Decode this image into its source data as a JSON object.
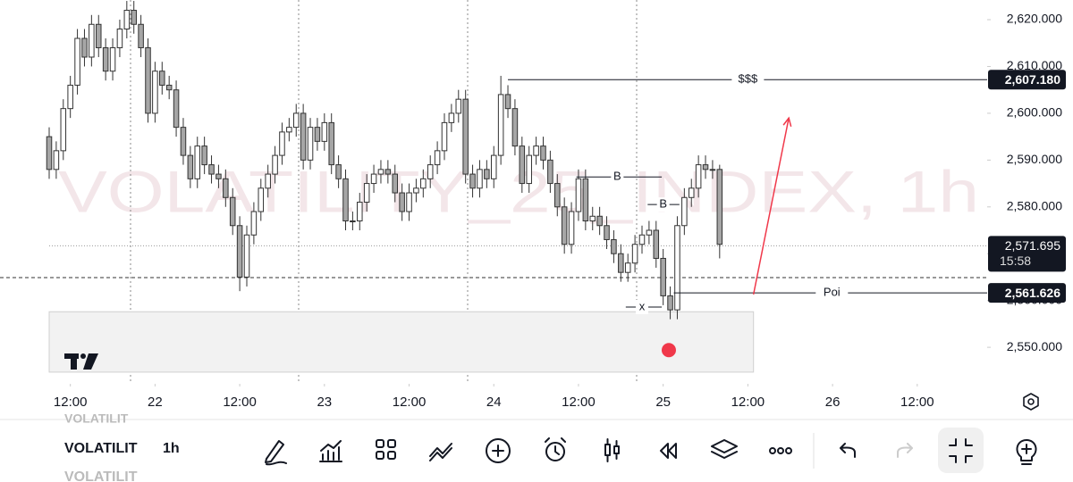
{
  "chart_data": {
    "type": "candlestick",
    "watermark": "VOLATILITY_25_INDEX, 1h",
    "up_color": "#ffffff",
    "down_color": "#a6a6a6",
    "outline_color": "#333333",
    "x": [
      9,
      10,
      11,
      12,
      13,
      14,
      15,
      16,
      17,
      18,
      19,
      20,
      21,
      22,
      23,
      24,
      25,
      26,
      27,
      28,
      29,
      30,
      31,
      32,
      33,
      34,
      35,
      36,
      37,
      38,
      39,
      40,
      41,
      42,
      43,
      44,
      45,
      46,
      47,
      48,
      49,
      50,
      51,
      52,
      53,
      54,
      55,
      56,
      57,
      58,
      59,
      60,
      61,
      62,
      63,
      64,
      65,
      66,
      67,
      68,
      69,
      70,
      71,
      72,
      73,
      74,
      75,
      76,
      77,
      78,
      79,
      80,
      81,
      82,
      83,
      84,
      85,
      86,
      87,
      88,
      89,
      90,
      91,
      92,
      93,
      94,
      95,
      96,
      97,
      98,
      99,
      100,
      101,
      102,
      103,
      104
    ],
    "open": [
      2595,
      2588,
      2592,
      2601,
      2606,
      2616,
      2612,
      2619,
      2614,
      2609,
      2614,
      2618,
      2622,
      2619,
      2614,
      2600,
      2609,
      2606,
      2605,
      2597,
      2591,
      2586,
      2593,
      2589,
      2587,
      2586,
      2582,
      2576,
      2565,
      2574,
      2579,
      2584,
      2587,
      2591,
      2596,
      2597,
      2600,
      2590,
      2597,
      2594,
      2598,
      2589,
      2586,
      2577,
      2577,
      2581,
      2585,
      2587,
      2588,
      2587,
      2583,
      2579,
      2583,
      2584,
      2586,
      2589,
      2592,
      2598,
      2600,
      2603,
      2587,
      2584,
      2588,
      2586,
      2591,
      2604,
      2601,
      2593,
      2585,
      2591,
      2593,
      2590,
      2585,
      2580,
      2572,
      2579,
      2586,
      2577,
      2578,
      2576,
      2573,
      2570,
      2566,
      2568,
      2572,
      2574,
      2575,
      2569,
      2561,
      2558,
      2576,
      2582,
      2584,
      2589,
      2588,
      2588
    ],
    "high": [
      2597,
      2594,
      2603,
      2608,
      2618,
      2618,
      2621,
      2621,
      2616,
      2616,
      2620,
      2624,
      2624,
      2621,
      2616,
      2611,
      2611,
      2608,
      2607,
      2599,
      2593,
      2595,
      2595,
      2591,
      2589,
      2588,
      2584,
      2578,
      2576,
      2581,
      2586,
      2589,
      2593,
      2598,
      2599,
      2602,
      2602,
      2599,
      2599,
      2600,
      2600,
      2591,
      2588,
      2579,
      2583,
      2587,
      2589,
      2590,
      2590,
      2589,
      2585,
      2585,
      2586,
      2588,
      2591,
      2594,
      2600,
      2602,
      2605,
      2605,
      2589,
      2590,
      2590,
      2593,
      2608,
      2606,
      2603,
      2595,
      2593,
      2595,
      2595,
      2592,
      2587,
      2582,
      2581,
      2588,
      2588,
      2580,
      2580,
      2578,
      2575,
      2572,
      2570,
      2574,
      2576,
      2577,
      2577,
      2571,
      2563,
      2578,
      2584,
      2586,
      2591,
      2591,
      2590,
      2589
    ],
    "low": [
      2586,
      2586,
      2590,
      2599,
      2604,
      2610,
      2610,
      2612,
      2607,
      2607,
      2612,
      2616,
      2617,
      2612,
      2598,
      2598,
      2604,
      2603,
      2595,
      2589,
      2584,
      2584,
      2587,
      2585,
      2584,
      2580,
      2574,
      2562,
      2563,
      2572,
      2577,
      2582,
      2585,
      2589,
      2594,
      2595,
      2588,
      2588,
      2592,
      2592,
      2587,
      2584,
      2575,
      2575,
      2575,
      2579,
      2583,
      2585,
      2585,
      2581,
      2577,
      2577,
      2581,
      2582,
      2584,
      2587,
      2590,
      2596,
      2598,
      2585,
      2582,
      2582,
      2584,
      2584,
      2589,
      2599,
      2591,
      2583,
      2583,
      2589,
      2588,
      2583,
      2578,
      2570,
      2570,
      2577,
      2575,
      2575,
      2574,
      2571,
      2568,
      2564,
      2564,
      2566,
      2570,
      2572,
      2567,
      2559,
      2556,
      2556,
      2574,
      2580,
      2582,
      2586,
      2586,
      2569
    ],
    "close": [
      2588,
      2592,
      2601,
      2606,
      2616,
      2612,
      2619,
      2614,
      2609,
      2614,
      2618,
      2622,
      2619,
      2614,
      2600,
      2609,
      2606,
      2605,
      2597,
      2591,
      2586,
      2593,
      2589,
      2587,
      2586,
      2582,
      2576,
      2565,
      2574,
      2579,
      2584,
      2587,
      2591,
      2596,
      2597,
      2600,
      2590,
      2597,
      2594,
      2598,
      2589,
      2586,
      2577,
      2577,
      2581,
      2585,
      2587,
      2588,
      2587,
      2583,
      2579,
      2583,
      2584,
      2586,
      2589,
      2592,
      2598,
      2600,
      2603,
      2587,
      2584,
      2588,
      2586,
      2591,
      2604,
      2601,
      2593,
      2585,
      2591,
      2593,
      2590,
      2585,
      2580,
      2572,
      2579,
      2586,
      2577,
      2578,
      2576,
      2573,
      2570,
      2566,
      2568,
      2572,
      2574,
      2575,
      2569,
      2561,
      2558,
      2576,
      2582,
      2584,
      2589,
      2588,
      2588,
      2572
    ],
    "xlim": [
      9,
      141.4
    ],
    "xticks": [
      {
        "value": 12,
        "label": "12:00"
      },
      {
        "value": 24,
        "label": "22"
      },
      {
        "value": 36,
        "label": "12:00"
      },
      {
        "value": 48,
        "label": "23"
      },
      {
        "value": 60,
        "label": "12:00"
      },
      {
        "value": 72,
        "label": "24"
      },
      {
        "value": 84,
        "label": "12:00"
      },
      {
        "value": 96,
        "label": "25"
      },
      {
        "value": 108,
        "label": "12:00"
      },
      {
        "value": 120,
        "label": "26"
      },
      {
        "value": 132,
        "label": "12:00"
      }
    ],
    "ylim": [
      2542.2,
      2624.2
    ],
    "yticks": [
      {
        "value": 2550,
        "label": "2,550.000"
      },
      {
        "value": 2560,
        "label": "2,560.000"
      },
      {
        "value": 2570,
        "label": "2,570.000"
      },
      {
        "value": 2580,
        "label": "2,580.000"
      },
      {
        "value": 2590,
        "label": "2,590.000"
      },
      {
        "value": 2600,
        "label": "2,600.000"
      },
      {
        "value": 2610,
        "label": "2,610.000"
      },
      {
        "value": 2620,
        "label": "2,620.000"
      }
    ],
    "levels": [
      {
        "text": "$$$",
        "value": 2607.18,
        "price_label": "2,607.180",
        "start": 74,
        "text_at": 108
      },
      {
        "text": "Poi",
        "value": 2561.626,
        "price_label": "2,561.626",
        "start": 97.5,
        "text_at": 119.9
      }
    ],
    "current_price": {
      "value": 2571.695,
      "label": "2,571.695",
      "countdown": "15:58"
    },
    "dashed_level": 2564.9,
    "annotations": [
      {
        "text": "B",
        "x": 89.5,
        "y": 2586.4,
        "line": [
          83.7,
          95.8
        ]
      },
      {
        "text": "B",
        "x": 96,
        "y": 2580.5,
        "line": [
          93.8,
          98.3
        ]
      },
      {
        "text": "x",
        "x": 93,
        "y": 2558.6,
        "line": [
          90.7,
          95.8
        ]
      }
    ],
    "zone": {
      "x": [
        9,
        108.8
      ],
      "y": [
        2544.7,
        2557.6
      ]
    },
    "dot": {
      "x": 96.8,
      "y": 2549.4,
      "color": "#f0384a"
    },
    "arrow": {
      "x": [
        108.8,
        113.8
      ],
      "y": [
        2561.3,
        2599
      ],
      "color": "#f0384a"
    }
  },
  "toolbar": {
    "symbol_prev": "VOLATILIT",
    "symbol": "VOLATILIT",
    "symbol_next": "VOLATILIT",
    "interval": "1h"
  }
}
